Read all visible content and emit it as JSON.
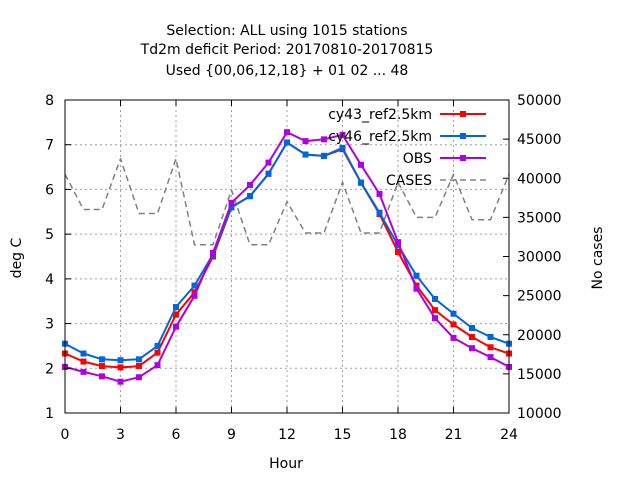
{
  "chart_data": {
    "type": "line",
    "title_lines": [
      "Selection: ALL using  1015 stations",
      "Td2m deficit   Period: 20170810-20170815",
      "Used {00,06,12,18} + 01 02 ... 48"
    ],
    "xlabel": "Hour",
    "ylabel": "deg C",
    "y2label": "No cases",
    "xlim": [
      0,
      24
    ],
    "ylim": [
      1,
      8
    ],
    "y2lim": [
      10000,
      50000
    ],
    "xticks": [
      "0",
      "3",
      "6",
      "9",
      "12",
      "15",
      "18",
      "21",
      "24"
    ],
    "yticks": [
      "1",
      "2",
      "3",
      "4",
      "5",
      "6",
      "7",
      "8"
    ],
    "y2ticks": [
      "10000",
      "15000",
      "20000",
      "25000",
      "30000",
      "35000",
      "40000",
      "45000",
      "50000"
    ],
    "grid": true,
    "legend_position": "top-right",
    "x": [
      0,
      1,
      2,
      3,
      4,
      5,
      6,
      7,
      8,
      9,
      10,
      11,
      12,
      13,
      14,
      15,
      16,
      17,
      18,
      19,
      20,
      21,
      22,
      23,
      24
    ],
    "series": [
      {
        "name": "cy43_ref2.5km",
        "color": "#ff0000",
        "axis": "y",
        "marker": "square",
        "values": [
          2.33,
          2.15,
          2.05,
          2.02,
          2.05,
          2.35,
          3.2,
          3.7,
          4.5,
          5.6,
          5.85,
          6.35,
          7.05,
          6.78,
          6.75,
          6.9,
          6.15,
          5.45,
          4.6,
          3.85,
          3.3,
          2.98,
          2.7,
          2.47,
          2.33
        ]
      },
      {
        "name": "cy46_ref2.5km",
        "color": "#0066e0",
        "axis": "y",
        "marker": "square",
        "values": [
          2.55,
          2.33,
          2.2,
          2.18,
          2.2,
          2.5,
          3.37,
          3.85,
          4.55,
          5.6,
          5.85,
          6.35,
          7.05,
          6.78,
          6.75,
          6.93,
          6.15,
          5.48,
          4.75,
          4.07,
          3.55,
          3.22,
          2.9,
          2.7,
          2.55
        ]
      },
      {
        "name": "OBS",
        "color": "#b000e0",
        "axis": "y",
        "marker": "square",
        "values": [
          2.03,
          1.92,
          1.82,
          1.7,
          1.8,
          2.07,
          2.93,
          3.62,
          4.58,
          5.7,
          6.1,
          6.6,
          7.28,
          7.08,
          7.12,
          7.22,
          6.55,
          5.9,
          4.82,
          3.78,
          3.12,
          2.68,
          2.45,
          2.25,
          2.03
        ]
      },
      {
        "name": "CASES",
        "color": "#808080",
        "axis": "y2",
        "dashed": true,
        "values": [
          40500,
          36000,
          36000,
          42500,
          35500,
          35500,
          42500,
          31500,
          31500,
          38500,
          31500,
          31500,
          37000,
          33000,
          33000,
          39500,
          33000,
          33000,
          39500,
          35000,
          35000,
          40500,
          34700,
          34700,
          40500
        ]
      }
    ]
  }
}
